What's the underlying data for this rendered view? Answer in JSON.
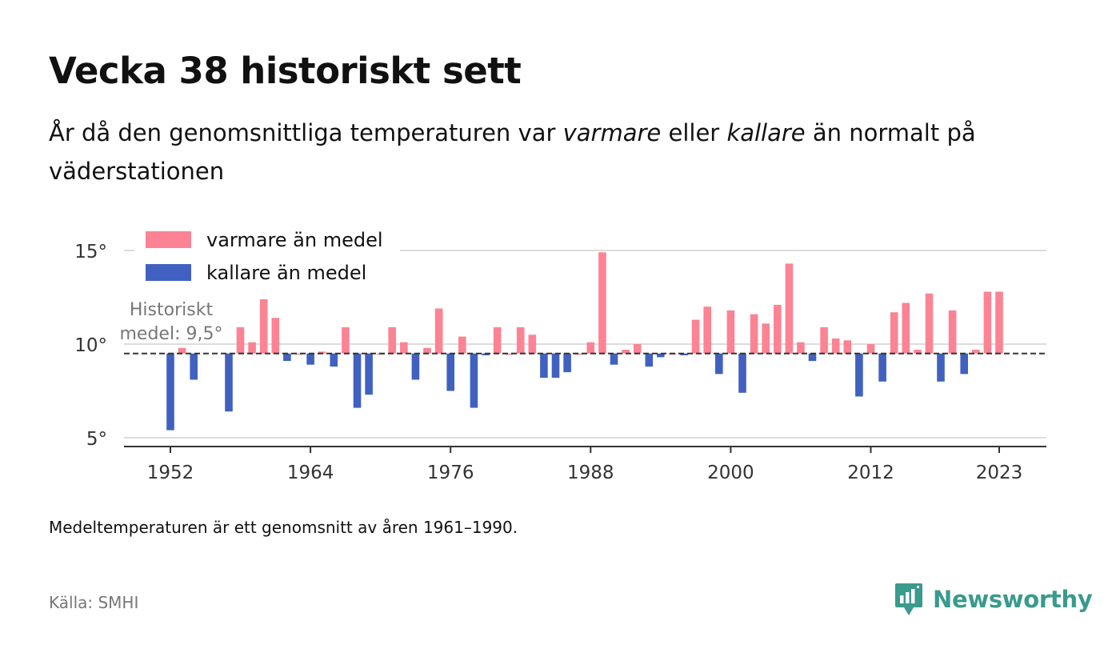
{
  "title": "Vecka 38 historiskt sett",
  "subtitle": {
    "part1": "År då den genomsnittliga temperaturen var ",
    "warm_word": "varmare",
    "part2": " eller ",
    "cold_word": "kallare",
    "part3": " än normalt på väderstationen"
  },
  "note": "Medeltemperaturen är ett genomsnitt av åren 1961–1990.",
  "source": "Källa: SMHI",
  "brand": {
    "name": "Newsworthy",
    "icon": "newsworthy-logo-icon",
    "color": "#3a9a8c"
  },
  "chart_data": {
    "type": "bar",
    "baseline": 9.5,
    "baseline_label_line1": "Historiskt",
    "baseline_label_line2": "medel: 9,5°",
    "ylim": [
      4.5,
      15.2
    ],
    "xlim": [
      1947.5,
      2027.5
    ],
    "y_ticks": [
      {
        "value": 5,
        "label": "5°"
      },
      {
        "value": 10,
        "label": "10°"
      },
      {
        "value": 15,
        "label": "15°"
      }
    ],
    "x_ticks": [
      {
        "value": 1952,
        "label": "1952"
      },
      {
        "value": 1964,
        "label": "1964"
      },
      {
        "value": 1976,
        "label": "1976"
      },
      {
        "value": 1988,
        "label": "1988"
      },
      {
        "value": 2000,
        "label": "2000"
      },
      {
        "value": 2012,
        "label": "2012"
      },
      {
        "value": 2023,
        "label": "2023"
      }
    ],
    "grid": true,
    "legend_position": "top-left",
    "legend": [
      {
        "label": "varmare än medel",
        "color": "#fc8393"
      },
      {
        "label": "kallare än medel",
        "color": "#4061bf"
      }
    ],
    "colors": {
      "warm": "#fc8393",
      "cold": "#4061bf"
    },
    "x": [
      1952,
      1953,
      1954,
      1957,
      1958,
      1959,
      1960,
      1961,
      1962,
      1963,
      1964,
      1965,
      1966,
      1967,
      1968,
      1969,
      1970,
      1971,
      1972,
      1973,
      1974,
      1975,
      1976,
      1977,
      1978,
      1979,
      1980,
      1981,
      1982,
      1983,
      1984,
      1985,
      1986,
      1987,
      1988,
      1989,
      1990,
      1991,
      1992,
      1993,
      1994,
      1995,
      1996,
      1997,
      1998,
      1999,
      2000,
      2001,
      2002,
      2003,
      2004,
      2005,
      2006,
      2007,
      2008,
      2009,
      2010,
      2011,
      2012,
      2013,
      2014,
      2015,
      2016,
      2017,
      2018,
      2019,
      2020,
      2021,
      2022,
      2023
    ],
    "values": [
      5.4,
      9.8,
      8.1,
      6.4,
      10.9,
      10.1,
      12.6,
      11.4,
      9.1,
      9.5,
      8.9,
      9.6,
      8.8,
      10.9,
      6.6,
      7.3,
      9.5,
      10.9,
      10.1,
      8.1,
      9.8,
      11.9,
      7.5,
      10.4,
      6.6,
      9.4,
      10.9,
      9.5,
      10.9,
      10.5,
      8.2,
      8.2,
      8.5,
      9.5,
      10.1,
      14.9,
      8.9,
      9.7,
      10.0,
      8.8,
      9.3,
      9.5,
      9.4,
      11.3,
      12.0,
      8.4,
      11.8,
      7.4,
      11.6,
      11.1,
      12.1,
      14.3,
      10.1,
      9.1,
      10.9,
      10.3,
      10.2,
      7.2,
      10.0,
      8.0,
      11.7,
      12.2,
      9.7,
      12.7,
      8.0,
      11.8,
      8.4,
      9.7,
      12.8,
      12.8
    ]
  }
}
